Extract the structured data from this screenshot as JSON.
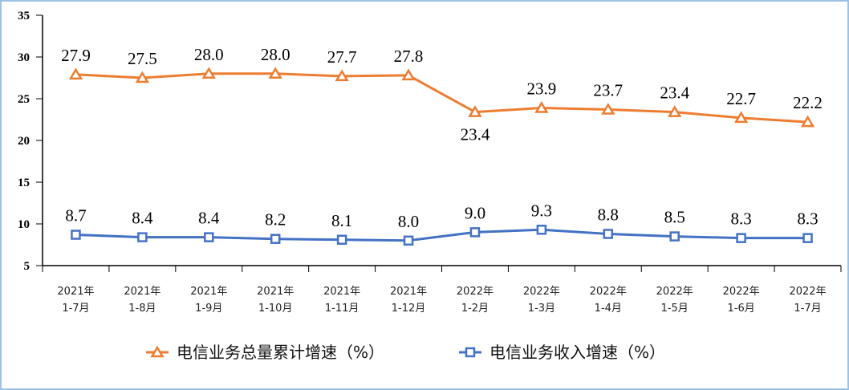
{
  "chart_data": {
    "type": "line",
    "categories": [
      [
        "2021年",
        "1-7月"
      ],
      [
        "2021年",
        "1-8月"
      ],
      [
        "2021年",
        "1-9月"
      ],
      [
        "2021年",
        "1-10月"
      ],
      [
        "2021年",
        "1-11月"
      ],
      [
        "2021年",
        "1-12月"
      ],
      [
        "2022年",
        "1-2月"
      ],
      [
        "2022年",
        "1-3月"
      ],
      [
        "2022年",
        "1-4月"
      ],
      [
        "2022年",
        "1-5月"
      ],
      [
        "2022年",
        "1-6月"
      ],
      [
        "2022年",
        "1-7月"
      ]
    ],
    "ylim": [
      5,
      35
    ],
    "yticks": [
      "5",
      "10",
      "15",
      "20",
      "25",
      "30",
      "35"
    ],
    "grid": false,
    "legend_position": "bottom",
    "series": [
      {
        "name": "电信业务总量累计增速（%）",
        "color": "#ed7d31",
        "marker": "triangle",
        "values": [
          27.9,
          27.5,
          28.0,
          28.0,
          27.7,
          27.8,
          23.4,
          23.9,
          23.7,
          23.4,
          22.7,
          22.2
        ],
        "labels": [
          "27.9",
          "27.5",
          "28.0",
          "28.0",
          "27.7",
          "27.8",
          "23.4",
          "23.9",
          "23.7",
          "23.4",
          "22.7",
          "22.2"
        ]
      },
      {
        "name": "电信业务收入增速（%）",
        "color": "#4472c4",
        "marker": "square",
        "values": [
          8.7,
          8.4,
          8.4,
          8.2,
          8.1,
          8.0,
          9.0,
          9.3,
          8.8,
          8.5,
          8.3,
          8.3
        ],
        "labels": [
          "8.7",
          "8.4",
          "8.4",
          "8.2",
          "8.1",
          "8.0",
          "9.0",
          "9.3",
          "8.8",
          "8.5",
          "8.3",
          "8.3"
        ]
      }
    ]
  }
}
